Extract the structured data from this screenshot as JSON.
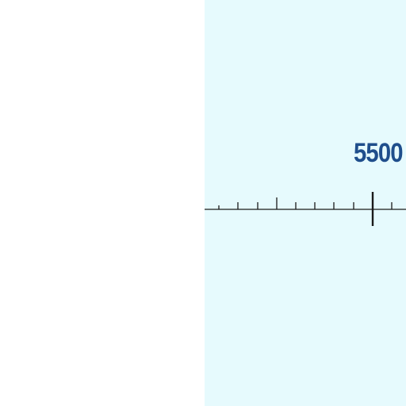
{
  "scale": {
    "value_label": "5500",
    "label_color": "#1f4e8c",
    "background_color": "#e6fafd",
    "line_color": "#1a1a1a"
  }
}
